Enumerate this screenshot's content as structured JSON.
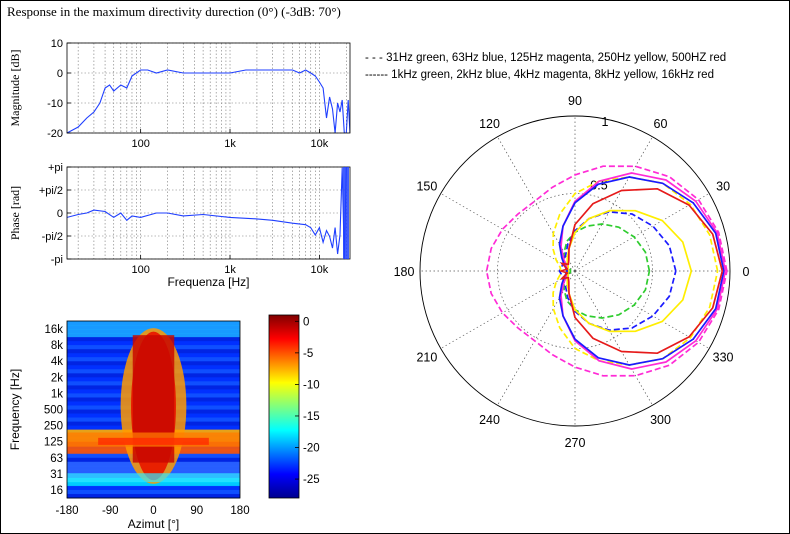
{
  "title": "Response in the maximum directivity durection (0°) (-3dB: 70°)",
  "legend": {
    "line1": "- - - 31Hz green, 63Hz blue, 125Hz magenta, 250Hz yellow, 500HZ red",
    "line2": "------ 1kHz green, 2kHz blue, 4kHz magenta, 8kHz yellow, 16kHz red"
  },
  "colors": {
    "line": "#1f3fff",
    "green": "#2ecc2e",
    "blue": "#1a1aff",
    "magenta": "#ff2bd6",
    "yellow": "#ffee00",
    "red": "#e61a1a"
  },
  "chart_data": [
    {
      "type": "line",
      "ylabel": "Magnitude [dB]",
      "xscale": "log",
      "xlim": [
        15,
        22000
      ],
      "ylim": [
        -20,
        10
      ],
      "xticks": [
        {
          "v": 100,
          "label": "100"
        },
        {
          "v": 1000,
          "label": "1k"
        },
        {
          "v": 10000,
          "label": "10k"
        }
      ],
      "yticks": [
        {
          "v": 10,
          "label": "10"
        },
        {
          "v": 0,
          "label": "0"
        },
        {
          "v": -10,
          "label": "-10"
        },
        {
          "v": -20,
          "label": "-20"
        }
      ],
      "grid": true,
      "x": [
        15,
        20,
        25,
        30,
        35,
        40,
        45,
        50,
        60,
        70,
        80,
        100,
        120,
        150,
        200,
        300,
        500,
        700,
        1000,
        1500,
        2000,
        3000,
        5000,
        6000,
        7000,
        8000,
        9000,
        10000,
        11000,
        12000,
        13000,
        14000,
        15000,
        16000,
        17000,
        18000,
        19000,
        20000,
        21000,
        22000
      ],
      "y": [
        -20,
        -18,
        -15,
        -13,
        -10,
        -5,
        -4,
        -6,
        -4,
        -5,
        -1,
        1,
        1,
        0,
        1,
        0,
        0,
        0,
        0,
        1,
        1,
        1,
        1,
        0,
        1,
        0,
        -1,
        -3,
        -5,
        -15,
        -8,
        -12,
        -20,
        -10,
        -13,
        -9,
        -20,
        -20,
        -9,
        -20
      ]
    },
    {
      "type": "line",
      "ylabel": "Phase [rad]",
      "xlabel": "Frequenza [Hz]",
      "xscale": "log",
      "xlim": [
        15,
        22000
      ],
      "ylim": [
        -3.1416,
        3.1416
      ],
      "xticks": [
        {
          "v": 100,
          "label": "100"
        },
        {
          "v": 1000,
          "label": "1k"
        },
        {
          "v": 10000,
          "label": "10k"
        }
      ],
      "yticks": [
        {
          "v": 3.1416,
          "label": "+pi"
        },
        {
          "v": 1.5708,
          "label": "+pi/2"
        },
        {
          "v": 0,
          "label": "0"
        },
        {
          "v": -1.5708,
          "label": "-pi/2"
        },
        {
          "v": -3.1416,
          "label": "-pi"
        }
      ],
      "grid": true,
      "x": [
        15,
        20,
        25,
        30,
        40,
        50,
        60,
        70,
        80,
        100,
        150,
        200,
        300,
        500,
        1000,
        2000,
        3000,
        5000,
        7000,
        8000,
        9000,
        10000,
        11000,
        12000,
        13000,
        14000,
        15000,
        16000,
        17000,
        18000,
        19000,
        20000
      ],
      "y": [
        -0.3,
        -0.1,
        0,
        0.2,
        0.1,
        -0.3,
        0,
        -0.5,
        -0.2,
        -0.3,
        0,
        0,
        -0.2,
        -0.1,
        -0.3,
        -0.4,
        -0.5,
        -0.7,
        -0.8,
        -1.0,
        -1.5,
        -1.0,
        -2.0,
        -1.2,
        -1.6,
        -2.4,
        -1.0,
        -2.8,
        -1.5,
        3.1,
        -3.1,
        3.1
      ]
    },
    {
      "type": "heatmap",
      "ylabel": "Frequency [Hz]",
      "xlabel": "Azimut [°]",
      "xticks": [
        "-180",
        "-90",
        "0",
        "90",
        "180"
      ],
      "yticks": [
        "16k",
        "8k",
        "4k",
        "2k",
        "1k",
        "500",
        "250",
        "125",
        "63",
        "31",
        "16"
      ],
      "colorbar": {
        "ticks": [
          "0",
          "-5",
          "-10",
          "-15",
          "-20",
          "-25"
        ],
        "range": [
          -28,
          1
        ]
      }
    },
    {
      "type": "polar",
      "angle_labels": [
        "0",
        "30",
        "60",
        "90",
        "120",
        "150",
        "180",
        "210",
        "240",
        "270",
        "300",
        "330"
      ],
      "radial_labels": [
        "0.5",
        "1"
      ],
      "series": [
        {
          "color": "green",
          "dashed": true,
          "values": [
            0.48,
            0.47,
            0.44,
            0.4,
            0.35,
            0.3,
            0.25,
            0.2,
            0.14,
            0.1,
            0.06,
            0.03,
            0.03,
            0.03,
            0.06,
            0.1,
            0.14,
            0.2,
            0.25,
            0.3,
            0.35,
            0.4,
            0.44,
            0.47
          ]
        },
        {
          "color": "blue",
          "dashed": true,
          "values": [
            0.65,
            0.63,
            0.58,
            0.52,
            0.44,
            0.35,
            0.26,
            0.18,
            0.12,
            0.1,
            0.09,
            0.09,
            0.1,
            0.09,
            0.09,
            0.1,
            0.12,
            0.18,
            0.26,
            0.35,
            0.44,
            0.52,
            0.58,
            0.63
          ]
        },
        {
          "color": "magenta",
          "dashed": true,
          "values": [
            0.98,
            0.96,
            0.92,
            0.86,
            0.78,
            0.7,
            0.62,
            0.56,
            0.52,
            0.52,
            0.54,
            0.56,
            0.57,
            0.56,
            0.54,
            0.52,
            0.52,
            0.56,
            0.62,
            0.7,
            0.78,
            0.86,
            0.92,
            0.96
          ]
        },
        {
          "color": "yellow",
          "dashed": true,
          "values": [
            0.92,
            0.9,
            0.86,
            0.8,
            0.7,
            0.6,
            0.5,
            0.38,
            0.28,
            0.2,
            0.14,
            0.1,
            0.09,
            0.1,
            0.14,
            0.2,
            0.28,
            0.38,
            0.5,
            0.6,
            0.7,
            0.8,
            0.86,
            0.9
          ]
        },
        {
          "color": "magenta",
          "dashed": false,
          "values": [
            0.97,
            0.95,
            0.9,
            0.83,
            0.73,
            0.6,
            0.45,
            0.3,
            0.18,
            0.1,
            0.06,
            0.05,
            0.05,
            0.05,
            0.06,
            0.1,
            0.18,
            0.3,
            0.45,
            0.6,
            0.73,
            0.83,
            0.9,
            0.95
          ]
        },
        {
          "color": "yellow",
          "dashed": false,
          "values": [
            0.75,
            0.72,
            0.65,
            0.55,
            0.45,
            0.35,
            0.25,
            0.15,
            0.1,
            0.07,
            0.05,
            0.05,
            0.04,
            0.05,
            0.05,
            0.07,
            0.1,
            0.15,
            0.25,
            0.35,
            0.45,
            0.55,
            0.65,
            0.72
          ]
        },
        {
          "color": "blue",
          "dashed": false,
          "values": [
            0.96,
            0.94,
            0.88,
            0.8,
            0.7,
            0.58,
            0.44,
            0.3,
            0.2,
            0.12,
            0.08,
            0.06,
            0.05,
            0.06,
            0.08,
            0.12,
            0.2,
            0.3,
            0.44,
            0.58,
            0.7,
            0.8,
            0.88,
            0.94
          ]
        },
        {
          "color": "red",
          "dashed": false,
          "values": [
            0.95,
            0.92,
            0.85,
            0.75,
            0.6,
            0.45,
            0.3,
            0.15,
            0.08,
            0.06,
            0.1,
            0.05,
            0.09,
            0.05,
            0.1,
            0.06,
            0.08,
            0.15,
            0.3,
            0.45,
            0.6,
            0.75,
            0.85,
            0.92
          ]
        }
      ]
    }
  ]
}
